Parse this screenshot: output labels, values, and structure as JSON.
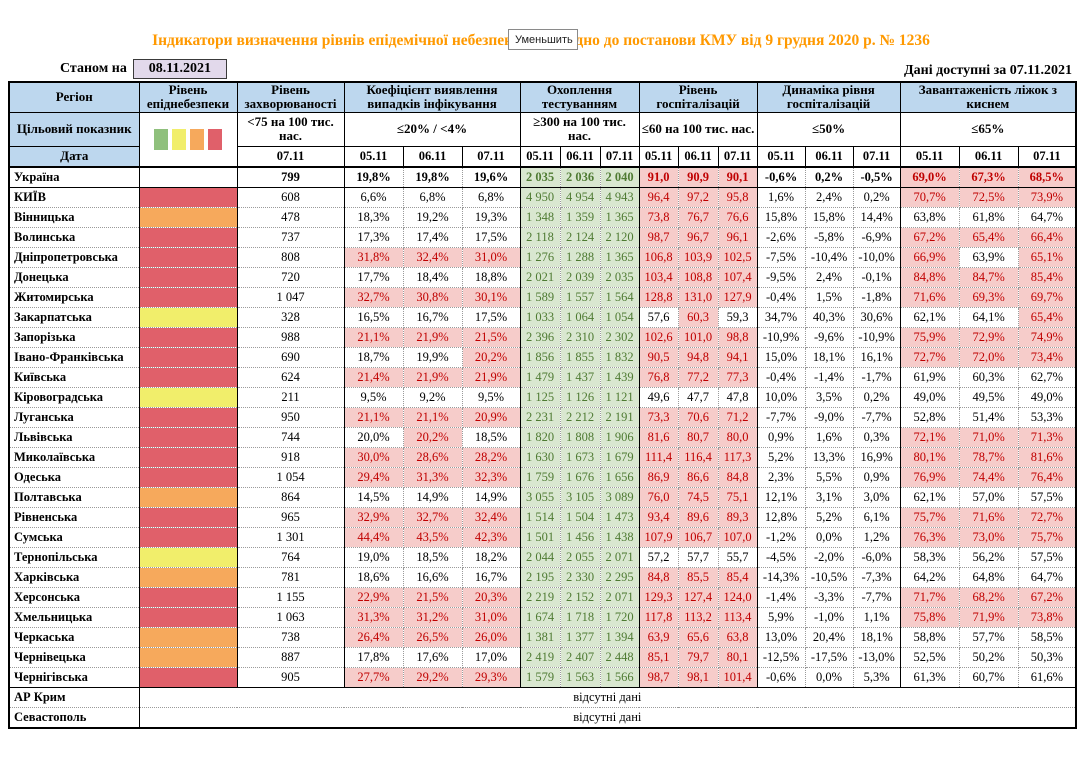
{
  "button": {
    "label": "Уменьшить"
  },
  "title": "Індикатори визначення рівнів епідемічної небезпеки відповідно до постанови КМУ від 9 грудня 2020 р. № 1236",
  "topbar": {
    "as_of_label": "Станом на",
    "as_of_date": "08.11.2021",
    "available": "Дані доступні за 07.11.2021"
  },
  "header": {
    "region_label": "Регіон",
    "target_label": "Цільовий показник",
    "date_label": "Дата",
    "level_title": "Рівень епіднебезпеки",
    "incidence": {
      "title": "Рівень захворюваності",
      "target": "<75 на 100 тис. нас.",
      "date": "07.11"
    },
    "groups": [
      {
        "title": "Коефіцієнт виявлення випадків інфікування",
        "target": "≤20% / <4%",
        "dates": [
          "05.11",
          "06.11",
          "07.11"
        ]
      },
      {
        "title": "Охоплення тестуванням",
        "target": "≥300 на 100 тис. нас.",
        "dates": [
          "05.11",
          "06.11",
          "07.11"
        ]
      },
      {
        "title": "Рівень госпіталізацій",
        "target": "≤60 на 100 тис. нас.",
        "dates": [
          "05.11",
          "06.11",
          "07.11"
        ]
      },
      {
        "title": "Динаміка рівня госпіталізацій",
        "target": "≤50%",
        "dates": [
          "05.11",
          "06.11",
          "07.11"
        ]
      },
      {
        "title": "Завантаженість ліжок з киснем",
        "target": "≤65%",
        "dates": [
          "05.11",
          "06.11",
          "07.11"
        ]
      }
    ]
  },
  "legend": [
    {
      "name": "green",
      "color": "#8FC07C"
    },
    {
      "name": "yellow",
      "color": "#F1EE6B"
    },
    {
      "name": "orange",
      "color": "#F6A95C"
    },
    {
      "name": "red",
      "color": "#E0606A"
    }
  ],
  "cell_colors": {
    "pink_bg": "#F6CCCA",
    "red_text": "#C00000",
    "green_bg": "#D9E7D0",
    "green_text": "#4F7B33",
    "header_blue": "#BDD7EE",
    "lavender": "#E2D9EB"
  },
  "rows": [
    {
      "name": "Україна",
      "bold": true,
      "level": "none",
      "incidence": "799",
      "detection": [
        "19,8%",
        "19,8%",
        "19,6%"
      ],
      "detection_alert": [
        0,
        0,
        0
      ],
      "testing": [
        "2 035",
        "2 036",
        "2 040"
      ],
      "hosp": [
        "91,0",
        "90,9",
        "90,1"
      ],
      "hosp_alert": [
        1,
        1,
        1
      ],
      "dynamics": [
        "-0,6%",
        "0,2%",
        "-0,5%"
      ],
      "beds": [
        "69,0%",
        "67,3%",
        "68,5%"
      ],
      "beds_alert": [
        1,
        1,
        1
      ]
    },
    {
      "name": "КИЇВ",
      "level": "red",
      "incidence": "608",
      "detection": [
        "6,6%",
        "6,8%",
        "6,8%"
      ],
      "detection_alert": [
        0,
        0,
        0
      ],
      "testing": [
        "4 950",
        "4 954",
        "4 943"
      ],
      "hosp": [
        "96,4",
        "97,2",
        "95,8"
      ],
      "hosp_alert": [
        1,
        1,
        1
      ],
      "dynamics": [
        "1,6%",
        "2,4%",
        "0,2%"
      ],
      "beds": [
        "70,7%",
        "72,5%",
        "73,9%"
      ],
      "beds_alert": [
        1,
        1,
        1
      ]
    },
    {
      "name": "Вінницька",
      "level": "orange",
      "incidence": "478",
      "detection": [
        "18,3%",
        "19,2%",
        "19,3%"
      ],
      "detection_alert": [
        0,
        0,
        0
      ],
      "testing": [
        "1 348",
        "1 359",
        "1 365"
      ],
      "hosp": [
        "73,8",
        "76,7",
        "76,6"
      ],
      "hosp_alert": [
        1,
        1,
        1
      ],
      "dynamics": [
        "15,8%",
        "15,8%",
        "14,4%"
      ],
      "beds": [
        "63,8%",
        "61,8%",
        "64,7%"
      ],
      "beds_alert": [
        0,
        0,
        0
      ]
    },
    {
      "name": "Волинська",
      "level": "red",
      "incidence": "737",
      "detection": [
        "17,3%",
        "17,4%",
        "17,5%"
      ],
      "detection_alert": [
        0,
        0,
        0
      ],
      "testing": [
        "2 118",
        "2 124",
        "2 120"
      ],
      "hosp": [
        "98,7",
        "96,7",
        "96,1"
      ],
      "hosp_alert": [
        1,
        1,
        1
      ],
      "dynamics": [
        "-2,6%",
        "-5,8%",
        "-6,9%"
      ],
      "beds": [
        "67,2%",
        "65,4%",
        "66,4%"
      ],
      "beds_alert": [
        1,
        1,
        1
      ]
    },
    {
      "name": "Дніпропетровська",
      "level": "red",
      "incidence": "808",
      "detection": [
        "31,8%",
        "32,4%",
        "31,0%"
      ],
      "detection_alert": [
        1,
        1,
        1
      ],
      "testing": [
        "1 276",
        "1 288",
        "1 365"
      ],
      "hosp": [
        "106,8",
        "103,9",
        "102,5"
      ],
      "hosp_alert": [
        1,
        1,
        1
      ],
      "dynamics": [
        "-7,5%",
        "-10,4%",
        "-10,0%"
      ],
      "beds": [
        "66,9%",
        "63,9%",
        "65,1%"
      ],
      "beds_alert": [
        1,
        0,
        1
      ]
    },
    {
      "name": "Донецька",
      "level": "red",
      "incidence": "720",
      "detection": [
        "17,7%",
        "18,4%",
        "18,8%"
      ],
      "detection_alert": [
        0,
        0,
        0
      ],
      "testing": [
        "2 021",
        "2 039",
        "2 035"
      ],
      "hosp": [
        "103,4",
        "108,8",
        "107,4"
      ],
      "hosp_alert": [
        1,
        1,
        1
      ],
      "dynamics": [
        "-9,5%",
        "2,4%",
        "-0,1%"
      ],
      "beds": [
        "84,8%",
        "84,7%",
        "85,4%"
      ],
      "beds_alert": [
        1,
        1,
        1
      ]
    },
    {
      "name": "Житомирська",
      "level": "red",
      "incidence": "1 047",
      "detection": [
        "32,7%",
        "30,8%",
        "30,1%"
      ],
      "detection_alert": [
        1,
        1,
        1
      ],
      "testing": [
        "1 589",
        "1 557",
        "1 564"
      ],
      "hosp": [
        "128,8",
        "131,0",
        "127,9"
      ],
      "hosp_alert": [
        1,
        1,
        1
      ],
      "dynamics": [
        "-0,4%",
        "1,5%",
        "-1,8%"
      ],
      "beds": [
        "71,6%",
        "69,3%",
        "69,7%"
      ],
      "beds_alert": [
        1,
        1,
        1
      ]
    },
    {
      "name": "Закарпатська",
      "level": "yellow",
      "incidence": "328",
      "detection": [
        "16,5%",
        "16,7%",
        "17,5%"
      ],
      "detection_alert": [
        0,
        0,
        0
      ],
      "testing": [
        "1 033",
        "1 064",
        "1 054"
      ],
      "hosp": [
        "57,6",
        "60,3",
        "59,3"
      ],
      "hosp_alert": [
        0,
        1,
        0
      ],
      "dynamics": [
        "34,7%",
        "40,3%",
        "30,6%"
      ],
      "beds": [
        "62,1%",
        "64,1%",
        "65,4%"
      ],
      "beds_alert": [
        0,
        0,
        1
      ]
    },
    {
      "name": "Запорізька",
      "level": "red",
      "incidence": "988",
      "detection": [
        "21,1%",
        "21,9%",
        "21,5%"
      ],
      "detection_alert": [
        1,
        1,
        1
      ],
      "testing": [
        "2 396",
        "2 310",
        "2 302"
      ],
      "hosp": [
        "102,6",
        "101,0",
        "98,8"
      ],
      "hosp_alert": [
        1,
        1,
        1
      ],
      "dynamics": [
        "-10,9%",
        "-9,6%",
        "-10,9%"
      ],
      "beds": [
        "75,9%",
        "72,9%",
        "74,9%"
      ],
      "beds_alert": [
        1,
        1,
        1
      ]
    },
    {
      "name": "Івано-Франківська",
      "level": "red",
      "incidence": "690",
      "detection": [
        "18,7%",
        "19,9%",
        "20,2%"
      ],
      "detection_alert": [
        0,
        0,
        1
      ],
      "testing": [
        "1 856",
        "1 855",
        "1 832"
      ],
      "hosp": [
        "90,5",
        "94,8",
        "94,1"
      ],
      "hosp_alert": [
        1,
        1,
        1
      ],
      "dynamics": [
        "15,0%",
        "18,1%",
        "16,1%"
      ],
      "beds": [
        "72,7%",
        "72,0%",
        "73,4%"
      ],
      "beds_alert": [
        1,
        1,
        1
      ]
    },
    {
      "name": "Київська",
      "level": "red",
      "incidence": "624",
      "detection": [
        "21,4%",
        "21,9%",
        "21,9%"
      ],
      "detection_alert": [
        1,
        1,
        1
      ],
      "testing": [
        "1 479",
        "1 437",
        "1 439"
      ],
      "hosp": [
        "76,8",
        "77,2",
        "77,3"
      ],
      "hosp_alert": [
        1,
        1,
        1
      ],
      "dynamics": [
        "-0,4%",
        "-1,4%",
        "-1,7%"
      ],
      "beds": [
        "61,9%",
        "60,3%",
        "62,7%"
      ],
      "beds_alert": [
        0,
        0,
        0
      ]
    },
    {
      "name": "Кіровоградська",
      "level": "yellow",
      "incidence": "211",
      "detection": [
        "9,5%",
        "9,2%",
        "9,5%"
      ],
      "detection_alert": [
        0,
        0,
        0
      ],
      "testing": [
        "1 125",
        "1 126",
        "1 121"
      ],
      "hosp": [
        "49,6",
        "47,7",
        "47,8"
      ],
      "hosp_alert": [
        0,
        0,
        0
      ],
      "dynamics": [
        "10,0%",
        "3,5%",
        "0,2%"
      ],
      "beds": [
        "49,0%",
        "49,5%",
        "49,0%"
      ],
      "beds_alert": [
        0,
        0,
        0
      ]
    },
    {
      "name": "Луганська",
      "level": "red",
      "incidence": "950",
      "detection": [
        "21,1%",
        "21,1%",
        "20,9%"
      ],
      "detection_alert": [
        1,
        1,
        1
      ],
      "testing": [
        "2 231",
        "2 212",
        "2 191"
      ],
      "hosp": [
        "73,3",
        "70,6",
        "71,2"
      ],
      "hosp_alert": [
        1,
        1,
        1
      ],
      "dynamics": [
        "-7,7%",
        "-9,0%",
        "-7,7%"
      ],
      "beds": [
        "52,8%",
        "51,4%",
        "53,3%"
      ],
      "beds_alert": [
        0,
        0,
        0
      ]
    },
    {
      "name": "Львівська",
      "level": "red",
      "incidence": "744",
      "detection": [
        "20,0%",
        "20,2%",
        "18,5%"
      ],
      "detection_alert": [
        0,
        1,
        0
      ],
      "testing": [
        "1 820",
        "1 808",
        "1 906"
      ],
      "hosp": [
        "81,6",
        "80,7",
        "80,0"
      ],
      "hosp_alert": [
        1,
        1,
        1
      ],
      "dynamics": [
        "0,9%",
        "1,6%",
        "0,3%"
      ],
      "beds": [
        "72,1%",
        "71,0%",
        "71,3%"
      ],
      "beds_alert": [
        1,
        1,
        1
      ]
    },
    {
      "name": "Миколаївська",
      "level": "red",
      "incidence": "918",
      "detection": [
        "30,0%",
        "28,6%",
        "28,2%"
      ],
      "detection_alert": [
        1,
        1,
        1
      ],
      "testing": [
        "1 630",
        "1 673",
        "1 679"
      ],
      "hosp": [
        "111,4",
        "116,4",
        "117,3"
      ],
      "hosp_alert": [
        1,
        1,
        1
      ],
      "dynamics": [
        "5,2%",
        "13,3%",
        "16,9%"
      ],
      "beds": [
        "80,1%",
        "78,7%",
        "81,6%"
      ],
      "beds_alert": [
        1,
        1,
        1
      ]
    },
    {
      "name": "Одеська",
      "level": "red",
      "incidence": "1 054",
      "detection": [
        "29,4%",
        "31,3%",
        "32,3%"
      ],
      "detection_alert": [
        1,
        1,
        1
      ],
      "testing": [
        "1 759",
        "1 676",
        "1 656"
      ],
      "hosp": [
        "86,9",
        "86,6",
        "84,8"
      ],
      "hosp_alert": [
        1,
        1,
        1
      ],
      "dynamics": [
        "2,3%",
        "5,5%",
        "0,9%"
      ],
      "beds": [
        "76,9%",
        "74,4%",
        "76,4%"
      ],
      "beds_alert": [
        1,
        1,
        1
      ]
    },
    {
      "name": "Полтавська",
      "level": "orange",
      "incidence": "864",
      "detection": [
        "14,5%",
        "14,9%",
        "14,9%"
      ],
      "detection_alert": [
        0,
        0,
        0
      ],
      "testing": [
        "3 055",
        "3 105",
        "3 089"
      ],
      "hosp": [
        "76,0",
        "74,5",
        "75,1"
      ],
      "hosp_alert": [
        1,
        1,
        1
      ],
      "dynamics": [
        "12,1%",
        "3,1%",
        "3,0%"
      ],
      "beds": [
        "62,1%",
        "57,0%",
        "57,5%"
      ],
      "beds_alert": [
        0,
        0,
        0
      ]
    },
    {
      "name": "Рівненська",
      "level": "red",
      "incidence": "965",
      "detection": [
        "32,9%",
        "32,7%",
        "32,4%"
      ],
      "detection_alert": [
        1,
        1,
        1
      ],
      "testing": [
        "1 514",
        "1 504",
        "1 473"
      ],
      "hosp": [
        "93,4",
        "89,6",
        "89,3"
      ],
      "hosp_alert": [
        1,
        1,
        1
      ],
      "dynamics": [
        "12,8%",
        "5,2%",
        "6,1%"
      ],
      "beds": [
        "75,7%",
        "71,6%",
        "72,7%"
      ],
      "beds_alert": [
        1,
        1,
        1
      ]
    },
    {
      "name": "Сумська",
      "level": "red",
      "incidence": "1 301",
      "detection": [
        "44,4%",
        "43,5%",
        "42,3%"
      ],
      "detection_alert": [
        1,
        1,
        1
      ],
      "testing": [
        "1 501",
        "1 456",
        "1 438"
      ],
      "hosp": [
        "107,9",
        "106,7",
        "107,0"
      ],
      "hosp_alert": [
        1,
        1,
        1
      ],
      "dynamics": [
        "-1,2%",
        "0,0%",
        "1,2%"
      ],
      "beds": [
        "76,3%",
        "73,0%",
        "75,7%"
      ],
      "beds_alert": [
        1,
        1,
        1
      ]
    },
    {
      "name": "Тернопільська",
      "level": "yellow",
      "incidence": "764",
      "detection": [
        "19,0%",
        "18,5%",
        "18,2%"
      ],
      "detection_alert": [
        0,
        0,
        0
      ],
      "testing": [
        "2 044",
        "2 055",
        "2 071"
      ],
      "hosp": [
        "57,2",
        "57,7",
        "55,7"
      ],
      "hosp_alert": [
        0,
        0,
        0
      ],
      "dynamics": [
        "-4,5%",
        "-2,0%",
        "-6,0%"
      ],
      "beds": [
        "58,3%",
        "56,2%",
        "57,5%"
      ],
      "beds_alert": [
        0,
        0,
        0
      ]
    },
    {
      "name": "Харківська",
      "level": "orange",
      "incidence": "781",
      "detection": [
        "18,6%",
        "16,6%",
        "16,7%"
      ],
      "detection_alert": [
        0,
        0,
        0
      ],
      "testing": [
        "2 195",
        "2 330",
        "2 295"
      ],
      "hosp": [
        "84,8",
        "85,5",
        "85,4"
      ],
      "hosp_alert": [
        1,
        1,
        1
      ],
      "dynamics": [
        "-14,3%",
        "-10,5%",
        "-7,3%"
      ],
      "beds": [
        "64,2%",
        "64,8%",
        "64,7%"
      ],
      "beds_alert": [
        0,
        0,
        0
      ]
    },
    {
      "name": "Херсонська",
      "level": "red",
      "incidence": "1 155",
      "detection": [
        "22,9%",
        "21,5%",
        "20,3%"
      ],
      "detection_alert": [
        1,
        1,
        1
      ],
      "testing": [
        "2 219",
        "2 152",
        "2 071"
      ],
      "hosp": [
        "129,3",
        "127,4",
        "124,0"
      ],
      "hosp_alert": [
        1,
        1,
        1
      ],
      "dynamics": [
        "-1,4%",
        "-3,3%",
        "-7,7%"
      ],
      "beds": [
        "71,7%",
        "68,2%",
        "67,2%"
      ],
      "beds_alert": [
        1,
        1,
        1
      ]
    },
    {
      "name": "Хмельницька",
      "level": "red",
      "incidence": "1 063",
      "detection": [
        "31,3%",
        "31,2%",
        "31,0%"
      ],
      "detection_alert": [
        1,
        1,
        1
      ],
      "testing": [
        "1 674",
        "1 718",
        "1 720"
      ],
      "hosp": [
        "117,8",
        "113,2",
        "113,4"
      ],
      "hosp_alert": [
        1,
        1,
        1
      ],
      "dynamics": [
        "5,9%",
        "-1,0%",
        "1,1%"
      ],
      "beds": [
        "75,8%",
        "71,9%",
        "73,8%"
      ],
      "beds_alert": [
        1,
        1,
        1
      ]
    },
    {
      "name": "Черкаська",
      "level": "orange",
      "incidence": "738",
      "detection": [
        "26,4%",
        "26,5%",
        "26,0%"
      ],
      "detection_alert": [
        1,
        1,
        1
      ],
      "testing": [
        "1 381",
        "1 377",
        "1 394"
      ],
      "hosp": [
        "63,9",
        "65,6",
        "63,8"
      ],
      "hosp_alert": [
        1,
        1,
        1
      ],
      "dynamics": [
        "13,0%",
        "20,4%",
        "18,1%"
      ],
      "beds": [
        "58,8%",
        "57,7%",
        "58,5%"
      ],
      "beds_alert": [
        0,
        0,
        0
      ]
    },
    {
      "name": "Чернівецька",
      "level": "orange",
      "incidence": "887",
      "detection": [
        "17,8%",
        "17,6%",
        "17,0%"
      ],
      "detection_alert": [
        0,
        0,
        0
      ],
      "testing": [
        "2 419",
        "2 407",
        "2 448"
      ],
      "hosp": [
        "85,1",
        "79,7",
        "80,1"
      ],
      "hosp_alert": [
        1,
        1,
        1
      ],
      "dynamics": [
        "-12,5%",
        "-17,5%",
        "-13,0%"
      ],
      "beds": [
        "52,5%",
        "50,2%",
        "50,3%"
      ],
      "beds_alert": [
        0,
        0,
        0
      ]
    },
    {
      "name": "Чернігівська",
      "level": "red",
      "incidence": "905",
      "detection": [
        "27,7%",
        "29,2%",
        "29,3%"
      ],
      "detection_alert": [
        1,
        1,
        1
      ],
      "testing": [
        "1 579",
        "1 563",
        "1 566"
      ],
      "hosp": [
        "98,7",
        "98,1",
        "101,4"
      ],
      "hosp_alert": [
        1,
        1,
        1
      ],
      "dynamics": [
        "-0,6%",
        "0,0%",
        "5,3%"
      ],
      "beds": [
        "61,3%",
        "60,7%",
        "61,6%"
      ],
      "beds_alert": [
        0,
        0,
        0
      ]
    },
    {
      "name": "АР Крим",
      "no_data": "відсутні дані",
      "solid_top": true
    },
    {
      "name": "Севастополь",
      "no_data": "відсутні дані"
    }
  ]
}
